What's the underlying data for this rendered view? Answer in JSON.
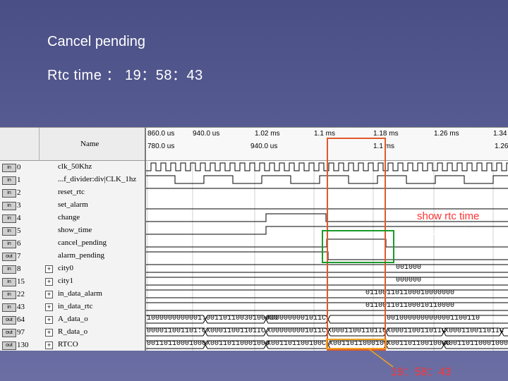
{
  "slide": {
    "title": "Cancel pending",
    "rtc_time_line": "Rtc time ： 19：58：43"
  },
  "waveform": {
    "name_header": "Name",
    "time_top": [
      "860.0 us",
      "940.0 us",
      "1.02 ms",
      "1.1 ms",
      "1.18 ms",
      "1.26 ms",
      "1.34"
    ],
    "time_bottom": [
      "780.0 us",
      "940.0 us",
      "1.1 ms",
      "1.26"
    ],
    "signals": [
      {
        "index": "0",
        "icon": "in",
        "name": "clk_50Khz"
      },
      {
        "index": "1",
        "icon": "in",
        "name": "...f_divider:div|CLK_1hz"
      },
      {
        "index": "2",
        "icon": "in",
        "name": "reset_rtc"
      },
      {
        "index": "3",
        "icon": "in",
        "name": "set_alarm"
      },
      {
        "index": "4",
        "icon": "in",
        "name": "change"
      },
      {
        "index": "5",
        "icon": "in",
        "name": "show_time"
      },
      {
        "index": "6",
        "icon": "in",
        "name": "cancel_pending"
      },
      {
        "index": "7",
        "icon": "out",
        "name": "alarm_pending"
      },
      {
        "index": "8",
        "icon": "in",
        "name": "city0",
        "expand": "+"
      },
      {
        "index": "15",
        "icon": "in",
        "name": "city1",
        "expand": "+"
      },
      {
        "index": "22",
        "icon": "in",
        "name": "in_data_alarm",
        "expand": "+"
      },
      {
        "index": "43",
        "icon": "in",
        "name": "in_data_rtc",
        "expand": "+"
      },
      {
        "index": "64",
        "icon": "out",
        "name": "A_data_o",
        "expand": "+"
      },
      {
        "index": "97",
        "icon": "out",
        "name": "R_data_o",
        "expand": "+"
      },
      {
        "index": "130",
        "icon": "out",
        "name": "RTCO",
        "expand": "+"
      }
    ],
    "bus_values": {
      "city0": "001000",
      "city1": "000000",
      "in_data_alarm": "011001101100010000000",
      "in_data_rtc": "011001101100010110000",
      "A_data_o": [
        "1000000000001:",
        "00110110030100000",
        "X000000001011C",
        "0010000000000001100110"
      ],
      "R_data_o": [
        "000011001101:C",
        "X00011001101IC",
        "X000000001011C",
        "X00011001101IC",
        "X00011001101IC",
        "X00011001101IC",
        "X00011001101IC"
      ],
      "RTCO": [
        "00110110001000",
        "X00110110001000",
        "X001101100100C",
        "X001101100010C",
        "X00110110010000",
        "X00110110001000"
      ]
    }
  },
  "annotations": {
    "show_rtc_time": "show rtc time",
    "time_value": "19：58：43"
  },
  "colors": {
    "red_box": "#e05a2b",
    "green_box": "#1a9a2a",
    "orange_box": "#f0a020",
    "annotation_text": "#ff3333"
  }
}
